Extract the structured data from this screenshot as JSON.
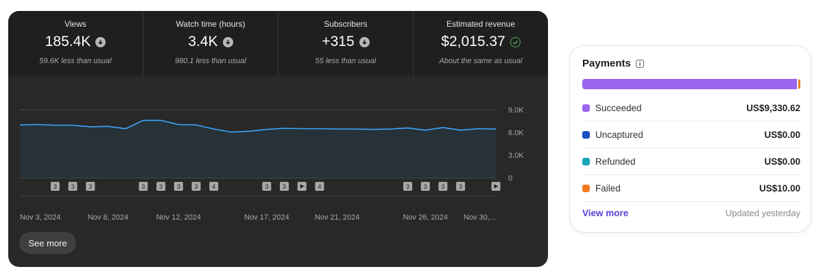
{
  "analytics": {
    "metrics": [
      {
        "label": "Views",
        "value": "185.4K",
        "note": "59.6K less than usual",
        "indicator": "down-arrow-icon"
      },
      {
        "label": "Watch time (hours)",
        "value": "3.4K",
        "note": "980.1 less than usual",
        "indicator": "down-arrow-icon"
      },
      {
        "label": "Subscribers",
        "value": "+315",
        "note": "55 less than usual",
        "indicator": "down-arrow-icon"
      },
      {
        "label": "Estimated revenue",
        "value": "$2,015.37",
        "note": "About the same as usual",
        "indicator": "check-circle-icon"
      }
    ],
    "see_more_label": "See more",
    "colors": {
      "line": "#3ea6ff",
      "area": "#263238",
      "card": "#282828"
    }
  },
  "chart_data": {
    "type": "area",
    "title": "",
    "xlabel": "",
    "ylabel": "",
    "ylim": [
      0,
      9000
    ],
    "y_ticks": [
      "9.0K",
      "6.0K",
      "3.0K",
      "0"
    ],
    "x_tick_labels": [
      "Nov 3, 2024",
      "Nov 8, 2024",
      "Nov 12, 2024",
      "Nov 17, 2024",
      "Nov 21, 2024",
      "Nov 26, 2024",
      "Nov 30,..."
    ],
    "x": [
      "Nov 3",
      "Nov 4",
      "Nov 5",
      "Nov 6",
      "Nov 7",
      "Nov 8",
      "Nov 9",
      "Nov 10",
      "Nov 11",
      "Nov 12",
      "Nov 13",
      "Nov 14",
      "Nov 15",
      "Nov 16",
      "Nov 17",
      "Nov 18",
      "Nov 19",
      "Nov 20",
      "Nov 21",
      "Nov 22",
      "Nov 23",
      "Nov 24",
      "Nov 25",
      "Nov 26",
      "Nov 27",
      "Nov 28",
      "Nov 29",
      "Nov 30"
    ],
    "series": [
      {
        "values": [
          7000,
          7050,
          6950,
          6950,
          6750,
          6800,
          6500,
          7600,
          7600,
          7050,
          7000,
          6450,
          6050,
          6150,
          6400,
          6550,
          6500,
          6500,
          6450,
          6450,
          6400,
          6450,
          6600,
          6300,
          6650,
          6300,
          6500,
          6450
        ]
      }
    ],
    "markers": [
      {
        "label": "3",
        "kind": "text",
        "index": 2
      },
      {
        "label": "3",
        "kind": "text",
        "index": 3
      },
      {
        "label": "3",
        "kind": "text",
        "index": 4
      },
      {
        "label": "3",
        "kind": "text",
        "index": 7
      },
      {
        "label": "3",
        "kind": "text",
        "index": 8
      },
      {
        "label": "3",
        "kind": "text",
        "index": 9
      },
      {
        "label": "3",
        "kind": "text",
        "index": 10
      },
      {
        "label": "4",
        "kind": "text",
        "index": 11
      },
      {
        "label": "3",
        "kind": "text",
        "index": 14
      },
      {
        "label": "3",
        "kind": "text",
        "index": 15
      },
      {
        "label": "",
        "kind": "play",
        "index": 16
      },
      {
        "label": "4",
        "kind": "text",
        "index": 17
      },
      {
        "label": "3",
        "kind": "text",
        "index": 22
      },
      {
        "label": "3",
        "kind": "text",
        "index": 23
      },
      {
        "label": "3",
        "kind": "text",
        "index": 24
      },
      {
        "label": "3",
        "kind": "text",
        "index": 25
      },
      {
        "label": "",
        "kind": "play",
        "index": 27
      }
    ],
    "grid": true,
    "legend": "none"
  },
  "payments": {
    "title": "Payments",
    "rows": [
      {
        "label": "Succeeded",
        "value": "US$9,330.62",
        "color": "#9b66f0"
      },
      {
        "label": "Uncaptured",
        "value": "US$0.00",
        "color": "#1a4fbf"
      },
      {
        "label": "Refunded",
        "value": "US$0.00",
        "color": "#1aa6b8"
      },
      {
        "label": "Failed",
        "value": "US$10.00",
        "color": "#f07a1d"
      }
    ],
    "bar_fractions": {
      "succeeded": 0.9989,
      "failed": 0.0011
    },
    "view_more_label": "View more",
    "updated_text": "Updated yesterday"
  }
}
